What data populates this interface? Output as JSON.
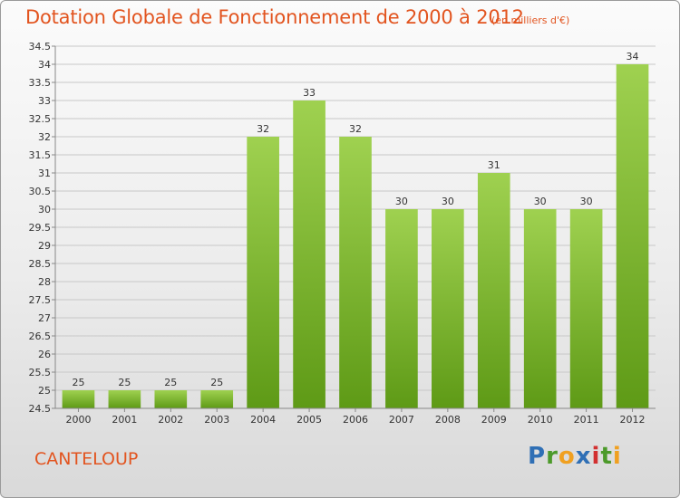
{
  "header": {
    "title": "Dotation Globale de Fonctionnement de 2000 à 2012",
    "unit": "(en milliers d'€)"
  },
  "footer": {
    "municipality": "CANTELOUP",
    "logo_letters": [
      {
        "char": "P",
        "color": "#2f6fb5"
      },
      {
        "char": "r",
        "color": "#4c9a2a"
      },
      {
        "char": "o",
        "color": "#f0a020"
      },
      {
        "char": "x",
        "color": "#2f6fb5"
      },
      {
        "char": "i",
        "color": "#d23030"
      },
      {
        "char": "t",
        "color": "#4c9a2a"
      },
      {
        "char": "i",
        "color": "#f0a020"
      }
    ]
  },
  "colors": {
    "title": "#e2541f",
    "bar_top": "#9fd150",
    "bar_bottom": "#5e9a16",
    "grid": "#c8c8c8",
    "axis_text": "#333333"
  },
  "chart_data": {
    "type": "bar",
    "title": "Dotation Globale de Fonctionnement de 2000 à 2012",
    "subtitle": "(en milliers d'€)",
    "xlabel": "",
    "ylabel": "",
    "categories": [
      "2000",
      "2001",
      "2002",
      "2003",
      "2004",
      "2005",
      "2006",
      "2007",
      "2008",
      "2009",
      "2010",
      "2011",
      "2012"
    ],
    "values": [
      25,
      25,
      25,
      25,
      32,
      33,
      32,
      30,
      30,
      31,
      30,
      30,
      34
    ],
    "data_labels": [
      "25",
      "25",
      "25",
      "25",
      "32",
      "33",
      "32",
      "30",
      "30",
      "31",
      "30",
      "30",
      "34"
    ],
    "ylim": [
      24.5,
      34.5
    ],
    "yticks": [
      "24.5",
      "25",
      "25.5",
      "26",
      "26.5",
      "27",
      "27.5",
      "28",
      "28.5",
      "29",
      "29.5",
      "30",
      "30.5",
      "31",
      "31.5",
      "32",
      "32.5",
      "33",
      "33.5",
      "34",
      "34.5"
    ],
    "grid": "horizontal",
    "legend": "none"
  }
}
